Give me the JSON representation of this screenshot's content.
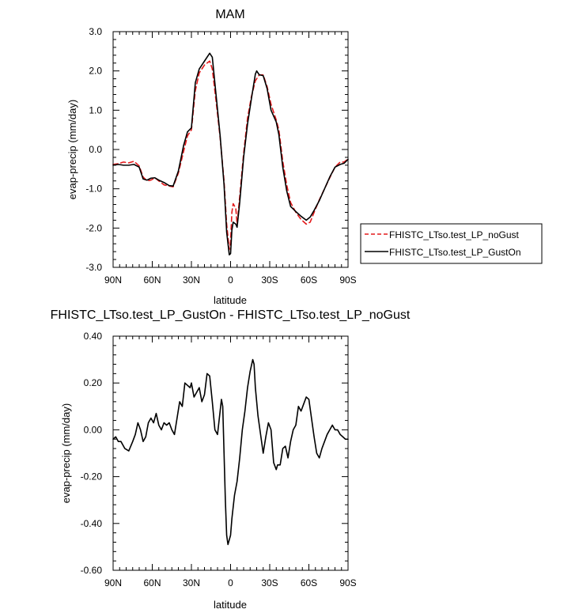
{
  "chart_data": [
    {
      "type": "line",
      "title": "MAM",
      "xlabel": "latitude",
      "ylabel": "evap-precip (mm/day)",
      "xlim": [
        90,
        -90
      ],
      "ylim": [
        -3.0,
        3.0
      ],
      "xticks": [
        90,
        60,
        30,
        0,
        -30,
        -60,
        -90
      ],
      "xtick_labels": [
        "90N",
        "60N",
        "30N",
        "0",
        "30S",
        "60S",
        "90S"
      ],
      "yticks": [
        -3.0,
        -2.0,
        -1.0,
        0.0,
        1.0,
        2.0,
        3.0
      ],
      "ytick_labels": [
        "-3.0",
        "-2.0",
        "-1.0",
        "0.0",
        "1.0",
        "2.0",
        "3.0"
      ],
      "grid": false,
      "legend": "right",
      "series": [
        {
          "name": "FHISTC_LTso.test_LP_noGust",
          "color": "#e41a1c",
          "dash": "dashed",
          "points": [
            [
              90,
              -0.38
            ],
            [
              86,
              -0.36
            ],
            [
              82,
              -0.32
            ],
            [
              78,
              -0.34
            ],
            [
              74,
              -0.3
            ],
            [
              70,
              -0.42
            ],
            [
              67,
              -0.7
            ],
            [
              64,
              -0.8
            ],
            [
              61,
              -0.78
            ],
            [
              58,
              -0.72
            ],
            [
              55,
              -0.8
            ],
            [
              51,
              -0.9
            ],
            [
              47,
              -0.93
            ],
            [
              44,
              -0.95
            ],
            [
              40,
              -0.6
            ],
            [
              36,
              -0.05
            ],
            [
              33,
              0.35
            ],
            [
              30,
              0.5
            ],
            [
              27,
              1.5
            ],
            [
              24,
              1.95
            ],
            [
              20,
              2.15
            ],
            [
              16,
              2.25
            ],
            [
              14,
              2.05
            ],
            [
              11,
              1.2
            ],
            [
              8,
              0.3
            ],
            [
              5,
              -0.8
            ],
            [
              3,
              -1.9
            ],
            [
              1,
              -2.55
            ],
            [
              0,
              -2.35
            ],
            [
              -1,
              -1.6
            ],
            [
              -2,
              -1.38
            ],
            [
              -4,
              -1.5
            ],
            [
              -5,
              -1.9
            ],
            [
              -7,
              -1.2
            ],
            [
              -10,
              -0.1
            ],
            [
              -13,
              0.8
            ],
            [
              -16,
              1.35
            ],
            [
              -19,
              1.75
            ],
            [
              -22,
              1.9
            ],
            [
              -25,
              1.9
            ],
            [
              -28,
              1.6
            ],
            [
              -31,
              1.15
            ],
            [
              -35,
              0.75
            ],
            [
              -37,
              0.5
            ],
            [
              -40,
              -0.3
            ],
            [
              -43,
              -0.9
            ],
            [
              -46,
              -1.35
            ],
            [
              -50,
              -1.6
            ],
            [
              -54,
              -1.78
            ],
            [
              -58,
              -1.9
            ],
            [
              -61,
              -1.85
            ],
            [
              -64,
              -1.6
            ],
            [
              -68,
              -1.28
            ],
            [
              -72,
              -1.0
            ],
            [
              -76,
              -0.72
            ],
            [
              -80,
              -0.45
            ],
            [
              -84,
              -0.32
            ],
            [
              -87,
              -0.32
            ],
            [
              -90,
              -0.24
            ]
          ]
        },
        {
          "name": "FHISTC_LTso.test_LP_GustOn",
          "color": "#000000",
          "dash": "solid",
          "points": [
            [
              90,
              -0.4
            ],
            [
              86,
              -0.38
            ],
            [
              82,
              -0.4
            ],
            [
              78,
              -0.4
            ],
            [
              74,
              -0.38
            ],
            [
              70,
              -0.45
            ],
            [
              67,
              -0.75
            ],
            [
              64,
              -0.78
            ],
            [
              61,
              -0.73
            ],
            [
              58,
              -0.72
            ],
            [
              55,
              -0.78
            ],
            [
              51,
              -0.84
            ],
            [
              47,
              -0.92
            ],
            [
              44,
              -0.93
            ],
            [
              40,
              -0.55
            ],
            [
              36,
              0.1
            ],
            [
              33,
              0.45
            ],
            [
              30,
              0.55
            ],
            [
              27,
              1.7
            ],
            [
              24,
              2.05
            ],
            [
              20,
              2.25
            ],
            [
              16,
              2.45
            ],
            [
              14,
              2.35
            ],
            [
              11,
              1.35
            ],
            [
              8,
              0.35
            ],
            [
              5,
              -0.9
            ],
            [
              3,
              -2.1
            ],
            [
              1,
              -2.68
            ],
            [
              0,
              -2.65
            ],
            [
              -1,
              -2.05
            ],
            [
              -2,
              -1.85
            ],
            [
              -4,
              -1.9
            ],
            [
              -5,
              -1.98
            ],
            [
              -7,
              -1.35
            ],
            [
              -10,
              -0.2
            ],
            [
              -13,
              0.65
            ],
            [
              -16,
              1.3
            ],
            [
              -19,
              1.92
            ],
            [
              -20,
              2.0
            ],
            [
              -22,
              1.9
            ],
            [
              -25,
              1.88
            ],
            [
              -28,
              1.55
            ],
            [
              -31,
              1.0
            ],
            [
              -35,
              0.7
            ],
            [
              -37,
              0.38
            ],
            [
              -40,
              -0.45
            ],
            [
              -43,
              -1.05
            ],
            [
              -46,
              -1.45
            ],
            [
              -50,
              -1.58
            ],
            [
              -54,
              -1.7
            ],
            [
              -58,
              -1.8
            ],
            [
              -61,
              -1.72
            ],
            [
              -64,
              -1.55
            ],
            [
              -68,
              -1.3
            ],
            [
              -72,
              -1.0
            ],
            [
              -76,
              -0.7
            ],
            [
              -80,
              -0.45
            ],
            [
              -84,
              -0.38
            ],
            [
              -87,
              -0.35
            ],
            [
              -90,
              -0.25
            ]
          ]
        }
      ]
    },
    {
      "type": "line",
      "title": "FHISTC_LTso.test_LP_GustOn - FHISTC_LTso.test_LP_noGust",
      "xlabel": "latitude",
      "ylabel": "evap-precip (mm/day)",
      "xlim": [
        90,
        -90
      ],
      "ylim": [
        -0.6,
        0.4
      ],
      "xticks": [
        90,
        60,
        30,
        0,
        -30,
        -60,
        -90
      ],
      "xtick_labels": [
        "90N",
        "60N",
        "30N",
        "0",
        "30S",
        "60S",
        "90S"
      ],
      "yticks": [
        -0.6,
        -0.4,
        -0.2,
        0.0,
        0.2,
        0.4
      ],
      "ytick_labels": [
        "-0.60",
        "-0.40",
        "-0.20",
        "0.00",
        "0.20",
        "0.40"
      ],
      "grid": false,
      "series": [
        {
          "color": "#000000",
          "dash": "solid",
          "points": [
            [
              90,
              -0.04
            ],
            [
              88,
              -0.03
            ],
            [
              86,
              -0.05
            ],
            [
              84,
              -0.05
            ],
            [
              81,
              -0.08
            ],
            [
              78,
              -0.09
            ],
            [
              75,
              -0.05
            ],
            [
              73,
              -0.02
            ],
            [
              71,
              0.03
            ],
            [
              69,
              0.0
            ],
            [
              67,
              -0.05
            ],
            [
              65,
              -0.03
            ],
            [
              63,
              0.03
            ],
            [
              61,
              0.05
            ],
            [
              59,
              0.03
            ],
            [
              57,
              0.07
            ],
            [
              55,
              0.02
            ],
            [
              53,
              0.0
            ],
            [
              51,
              0.03
            ],
            [
              49,
              0.02
            ],
            [
              47,
              0.03
            ],
            [
              45,
              0.0
            ],
            [
              43,
              -0.02
            ],
            [
              41,
              0.05
            ],
            [
              39,
              0.12
            ],
            [
              37,
              0.1
            ],
            [
              35,
              0.2
            ],
            [
              33,
              0.19
            ],
            [
              31,
              0.18
            ],
            [
              30,
              0.2
            ],
            [
              28,
              0.14
            ],
            [
              26,
              0.16
            ],
            [
              24,
              0.18
            ],
            [
              22,
              0.12
            ],
            [
              20,
              0.15
            ],
            [
              18,
              0.24
            ],
            [
              16,
              0.23
            ],
            [
              14,
              0.12
            ],
            [
              12,
              0.0
            ],
            [
              10,
              -0.02
            ],
            [
              8,
              0.08
            ],
            [
              7,
              0.13
            ],
            [
              6,
              0.1
            ],
            [
              5,
              -0.1
            ],
            [
              4,
              -0.3
            ],
            [
              3,
              -0.45
            ],
            [
              2,
              -0.49
            ],
            [
              1,
              -0.47
            ],
            [
              0,
              -0.45
            ],
            [
              -1,
              -0.38
            ],
            [
              -3,
              -0.28
            ],
            [
              -5,
              -0.22
            ],
            [
              -7,
              -0.12
            ],
            [
              -9,
              0.0
            ],
            [
              -11,
              0.08
            ],
            [
              -13,
              0.18
            ],
            [
              -15,
              0.25
            ],
            [
              -17,
              0.3
            ],
            [
              -18,
              0.28
            ],
            [
              -19,
              0.18
            ],
            [
              -21,
              0.06
            ],
            [
              -23,
              -0.02
            ],
            [
              -25,
              -0.1
            ],
            [
              -27,
              -0.03
            ],
            [
              -29,
              0.03
            ],
            [
              -31,
              0.0
            ],
            [
              -33,
              -0.14
            ],
            [
              -35,
              -0.17
            ],
            [
              -36,
              -0.15
            ],
            [
              -38,
              -0.15
            ],
            [
              -40,
              -0.08
            ],
            [
              -42,
              -0.07
            ],
            [
              -44,
              -0.12
            ],
            [
              -46,
              -0.05
            ],
            [
              -48,
              0.0
            ],
            [
              -50,
              0.02
            ],
            [
              -52,
              0.1
            ],
            [
              -54,
              0.08
            ],
            [
              -56,
              0.11
            ],
            [
              -58,
              0.14
            ],
            [
              -60,
              0.13
            ],
            [
              -62,
              0.05
            ],
            [
              -64,
              -0.03
            ],
            [
              -66,
              -0.1
            ],
            [
              -68,
              -0.12
            ],
            [
              -70,
              -0.08
            ],
            [
              -72,
              -0.05
            ],
            [
              -74,
              -0.02
            ],
            [
              -76,
              0.0
            ],
            [
              -78,
              0.02
            ],
            [
              -80,
              0.0
            ],
            [
              -82,
              0.0
            ],
            [
              -84,
              -0.02
            ],
            [
              -86,
              -0.03
            ],
            [
              -88,
              -0.04
            ],
            [
              -90,
              -0.04
            ]
          ]
        }
      ]
    }
  ]
}
